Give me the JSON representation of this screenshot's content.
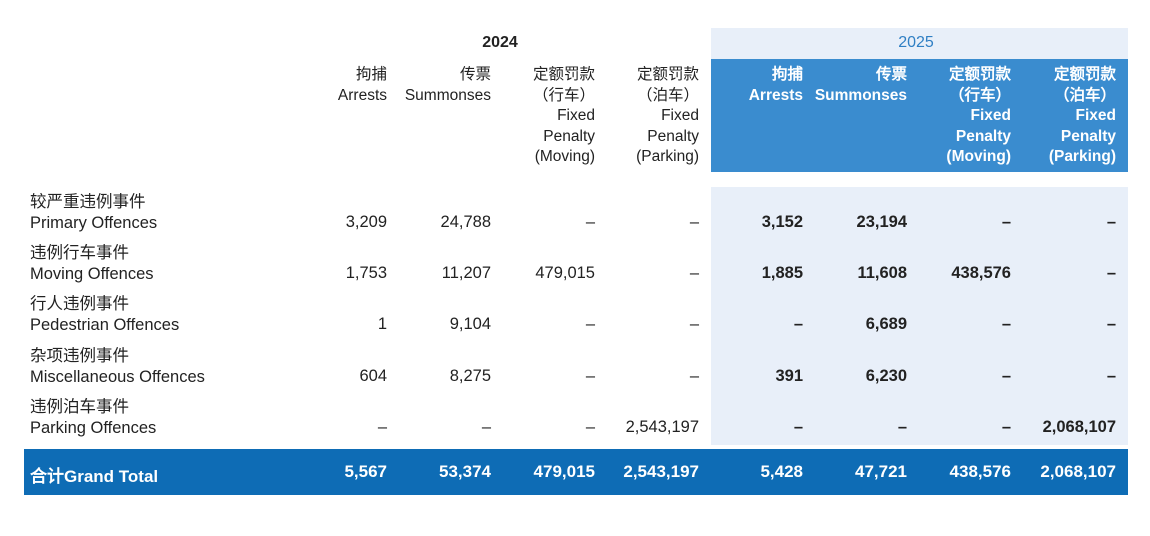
{
  "years": {
    "y2024": "2024",
    "y2025": "2025"
  },
  "columns": [
    {
      "zh": "拘捕",
      "en": [
        "Arrests"
      ]
    },
    {
      "zh": "传票",
      "en": [
        "Summonses"
      ]
    },
    {
      "zh": "定额罚款",
      "zh2": "（行车）",
      "en": [
        "Fixed",
        "Penalty",
        "(Moving)"
      ]
    },
    {
      "zh": "定额罚款",
      "zh2": "（泊车）",
      "en": [
        "Fixed",
        "Penalty",
        "(Parking)"
      ]
    }
  ],
  "rows": [
    {
      "zh": "较严重违例事件",
      "en": "Primary Offences",
      "v2024": [
        "3,209",
        "24,788",
        "–",
        "–"
      ],
      "v2025": [
        "3,152",
        "23,194",
        "–",
        "–"
      ]
    },
    {
      "zh": "违例行车事件",
      "en": "Moving Offences",
      "v2024": [
        "1,753",
        "11,207",
        "479,015",
        "–"
      ],
      "v2025": [
        "1,885",
        "11,608",
        "438,576",
        "–"
      ]
    },
    {
      "zh": "行人违例事件",
      "en": "Pedestrian Offences",
      "v2024": [
        "1",
        "9,104",
        "–",
        "–"
      ],
      "v2025": [
        "–",
        "6,689",
        "–",
        "–"
      ]
    },
    {
      "zh": "杂项违例事件",
      "en": "Miscellaneous Offences",
      "v2024": [
        "604",
        "8,275",
        "–",
        "–"
      ],
      "v2025": [
        "391",
        "6,230",
        "–",
        "–"
      ]
    },
    {
      "zh": "违例泊车事件",
      "en": "Parking Offences",
      "v2024": [
        "–",
        "–",
        "–",
        "2,543,197"
      ],
      "v2025": [
        "–",
        "–",
        "–",
        "2,068,107"
      ]
    }
  ],
  "total": {
    "label": "合计Grand Total",
    "v2024": [
      "5,567",
      "53,374",
      "479,015",
      "2,543,197"
    ],
    "v2025": [
      "5,428",
      "47,721",
      "438,576",
      "2,068,107"
    ]
  }
}
